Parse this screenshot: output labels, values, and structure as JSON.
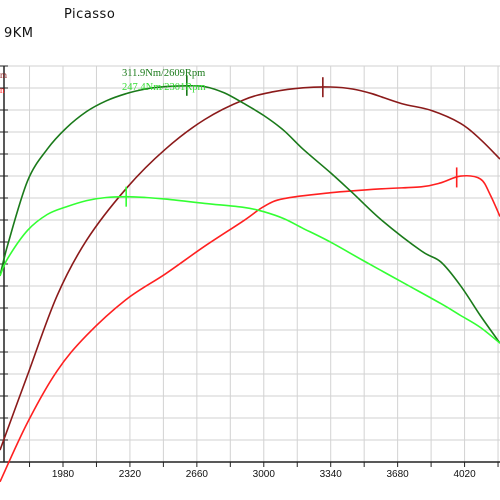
{
  "header": {
    "line1": "Picasso",
    "line2": "9KM"
  },
  "edge_labels": [
    {
      "text": "m",
      "color": "#8b1a1a"
    },
    {
      "text": "n",
      "color": "#ff2020"
    }
  ],
  "annotations": [
    {
      "text": "311.9Nm/2609Rpm",
      "color": "#1a7a1a"
    },
    {
      "text": "247.4Nm/2301Rpm",
      "color": "#33dd33"
    }
  ],
  "chart_data": {
    "type": "line",
    "title": "",
    "xlabel": "",
    "ylabel": "",
    "x_ticks": [
      1980,
      2320,
      2660,
      3000,
      3340,
      3680,
      4020
    ],
    "xlim": [
      1660,
      4200
    ],
    "ylim": [
      0,
      100
    ],
    "grid": true,
    "series": [
      {
        "color": "#8b1a1a",
        "x": [
          1660,
          1800,
          1950,
          2100,
          2300,
          2500,
          2700,
          2900,
          3050,
          3200,
          3340,
          3450,
          3550,
          3700,
          3850,
          4000,
          4100,
          4200
        ],
        "y": [
          3,
          22,
          42,
          56,
          69,
          79,
          86.5,
          91.5,
          93.5,
          94.5,
          94.7,
          94.2,
          93,
          90.5,
          88.8,
          85.5,
          81.5,
          76.5
        ],
        "peak_x": 3300
      },
      {
        "color": "#ff2020",
        "x": [
          1660,
          1800,
          1950,
          2100,
          2300,
          2500,
          2700,
          2900,
          3000,
          3100,
          3340,
          3600,
          3800,
          3900,
          4000,
          4100,
          4150,
          4200
        ],
        "y": [
          -5,
          10,
          23,
          32,
          41,
          47.5,
          54.5,
          61,
          64.5,
          66.5,
          68,
          69,
          69.5,
          70.5,
          72.2,
          71.5,
          67.5,
          62
        ],
        "peak_x": 3980
      },
      {
        "color": "#1a7a1a",
        "x": [
          1660,
          1700,
          1800,
          1900,
          2000,
          2100,
          2200,
          2300,
          2400,
          2500,
          2609,
          2700,
          2800,
          2900,
          3000,
          3100,
          3200,
          3340,
          3450,
          3600,
          3800,
          3900,
          4000,
          4100,
          4200
        ],
        "y": [
          47,
          55,
          71,
          79,
          84.5,
          88.5,
          91.2,
          93,
          94.2,
          94.8,
          95,
          94.8,
          93.2,
          90.5,
          87.5,
          83.8,
          79,
          73,
          68,
          61,
          53.3,
          50.5,
          44.5,
          37,
          30
        ],
        "peak_x": 2609
      },
      {
        "color": "#33ff33",
        "x": [
          1660,
          1700,
          1800,
          1900,
          2000,
          2100,
          2200,
          2301,
          2400,
          2500,
          2700,
          2900,
          3000,
          3100,
          3200,
          3340,
          3500,
          3700,
          3900,
          4000,
          4100,
          4200
        ],
        "y": [
          47,
          51.5,
          58.5,
          62.5,
          64.5,
          66,
          66.8,
          67,
          66.8,
          66.4,
          65.3,
          64.3,
          63.2,
          61.5,
          59,
          55.5,
          51,
          45.5,
          40,
          37,
          34,
          30
        ],
        "peak_x": 2301
      }
    ]
  }
}
